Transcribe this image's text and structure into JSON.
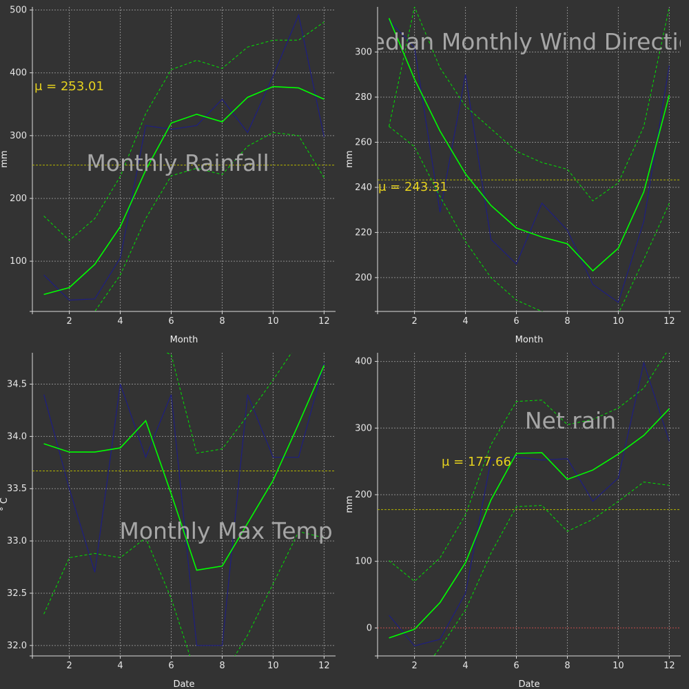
{
  "colors": {
    "background": "#333333",
    "grid": "#8c8c8c",
    "actual": "#1e1e82",
    "fit": "#00ff00",
    "band": "#00e600",
    "mean_line": "#b4b400",
    "mean_text": "#e6d21e",
    "zero_line": "#b43c3c",
    "title": "#a6a6a6",
    "axis": "#dcdcdc"
  },
  "chart_data": [
    {
      "type": "line",
      "title": "Monthly Rainfall",
      "xlabel": "Month",
      "ylabel": "mm",
      "mean_label": "μ = 253.01",
      "mean": 253.01,
      "xlim": [
        0.55,
        12.45
      ],
      "ylim": [
        20,
        505
      ],
      "xticks": [
        2,
        4,
        6,
        8,
        10,
        12
      ],
      "yticks": [
        100,
        200,
        300,
        400,
        500
      ],
      "grid": true,
      "x": [
        1,
        2,
        3,
        4,
        5,
        6,
        7,
        8,
        9,
        10,
        11,
        12
      ],
      "series": [
        {
          "role": "actual",
          "values": [
            78,
            38,
            40,
            105,
            316,
            310,
            316,
            358,
            305,
            395,
            492,
            298
          ]
        },
        {
          "role": "fit",
          "values": [
            47,
            58,
            95,
            155,
            245,
            320,
            334,
            322,
            361,
            378,
            376,
            358
          ]
        },
        {
          "role": "upper",
          "values": [
            172,
            133,
            168,
            235,
            335,
            405,
            420,
            407,
            441,
            452,
            452,
            481
          ]
        },
        {
          "role": "lower",
          "values": [
            -10,
            -10,
            20,
            78,
            168,
            236,
            248,
            238,
            283,
            305,
            300,
            233
          ]
        }
      ]
    },
    {
      "type": "line",
      "title": "Median Monthly Wind Direction",
      "xlabel": "Month",
      "ylabel": "mm",
      "mean_label": "μ = 243.31",
      "mean": 243.31,
      "xlim": [
        0.55,
        12.45
      ],
      "ylim": [
        185,
        320
      ],
      "xticks": [
        2,
        4,
        6,
        8,
        10,
        12
      ],
      "yticks": [
        200,
        220,
        240,
        260,
        280,
        300
      ],
      "grid": true,
      "x": [
        1,
        2,
        3,
        4,
        5,
        6,
        7,
        8,
        9,
        10,
        11,
        12
      ],
      "series": [
        {
          "role": "actual",
          "values": [
            314,
            302,
            229,
            290,
            217,
            206,
            233,
            221,
            197,
            189,
            225,
            294
          ]
        },
        {
          "role": "fit",
          "values": [
            315,
            288,
            265,
            246,
            232,
            222,
            218,
            215,
            203,
            213,
            238,
            281
          ]
        },
        {
          "role": "upper",
          "values": [
            267,
            320,
            293,
            276,
            266,
            256,
            251,
            248,
            234,
            242,
            267,
            320
          ]
        },
        {
          "role": "lower",
          "values": [
            267,
            258,
            236,
            216,
            200,
            190,
            185,
            182,
            172,
            184,
            208,
            233
          ]
        }
      ]
    },
    {
      "type": "line",
      "title": "Monthly Max Temp",
      "xlabel": "Date",
      "ylabel": "° C",
      "mean_label": "",
      "mean": 33.67,
      "xlim": [
        0.55,
        12.45
      ],
      "ylim": [
        31.9,
        34.8
      ],
      "xticks": [
        2,
        4,
        6,
        8,
        10,
        12
      ],
      "yticks": [
        32.0,
        32.5,
        33.0,
        33.5,
        34.0,
        34.5
      ],
      "yticklabels": [
        "32.0",
        "32.5",
        "33.0",
        "33.5",
        "34.0",
        "34.5"
      ],
      "grid": true,
      "x": [
        1,
        2,
        3,
        4,
        5,
        6,
        7,
        8,
        9,
        10,
        11,
        12
      ],
      "series": [
        {
          "role": "actual",
          "values": [
            34.4,
            33.5,
            32.7,
            34.5,
            33.8,
            34.4,
            32.0,
            32.0,
            34.4,
            33.8,
            33.8,
            34.7
          ]
        },
        {
          "role": "fit",
          "values": [
            33.93,
            33.85,
            33.85,
            33.89,
            34.15,
            33.45,
            32.72,
            32.76,
            33.17,
            33.58,
            34.12,
            34.68
          ]
        },
        {
          "role": "upper",
          "values": [
            34.9,
            34.9,
            34.9,
            34.9,
            34.9,
            34.78,
            33.84,
            33.88,
            34.2,
            34.54,
            34.9,
            34.9
          ]
        },
        {
          "role": "lower",
          "values": [
            32.3,
            32.84,
            32.88,
            32.84,
            33.03,
            32.45,
            31.7,
            31.7,
            32.1,
            32.59,
            33.09,
            33.03
          ]
        }
      ]
    },
    {
      "type": "line",
      "title": "Net rain",
      "xlabel": "Date",
      "ylabel": "mm",
      "mean_label": "μ = 177.66",
      "mean": 177.66,
      "zero_line": 0,
      "xlim": [
        0.55,
        12.45
      ],
      "ylim": [
        -42,
        413
      ],
      "xticks": [
        2,
        4,
        6,
        8,
        10,
        12
      ],
      "yticks": [
        0,
        100,
        200,
        300,
        400
      ],
      "grid": true,
      "x": [
        1,
        2,
        3,
        4,
        5,
        6,
        7,
        8,
        9,
        10,
        11,
        12
      ],
      "series": [
        {
          "role": "actual",
          "values": [
            19,
            -27,
            -17,
            52,
            252,
            257,
            252,
            254,
            190,
            225,
            398,
            280
          ]
        },
        {
          "role": "fit",
          "values": [
            -15,
            -2,
            38,
            98,
            192,
            262,
            263,
            223,
            237,
            261,
            289,
            329
          ]
        },
        {
          "role": "upper",
          "values": [
            101,
            70,
            105,
            170,
            275,
            340,
            342,
            305,
            313,
            330,
            360,
            420
          ]
        },
        {
          "role": "lower",
          "values": [
            -80,
            -80,
            -30,
            27,
            112,
            182,
            184,
            145,
            163,
            190,
            219,
            214
          ]
        }
      ]
    }
  ]
}
